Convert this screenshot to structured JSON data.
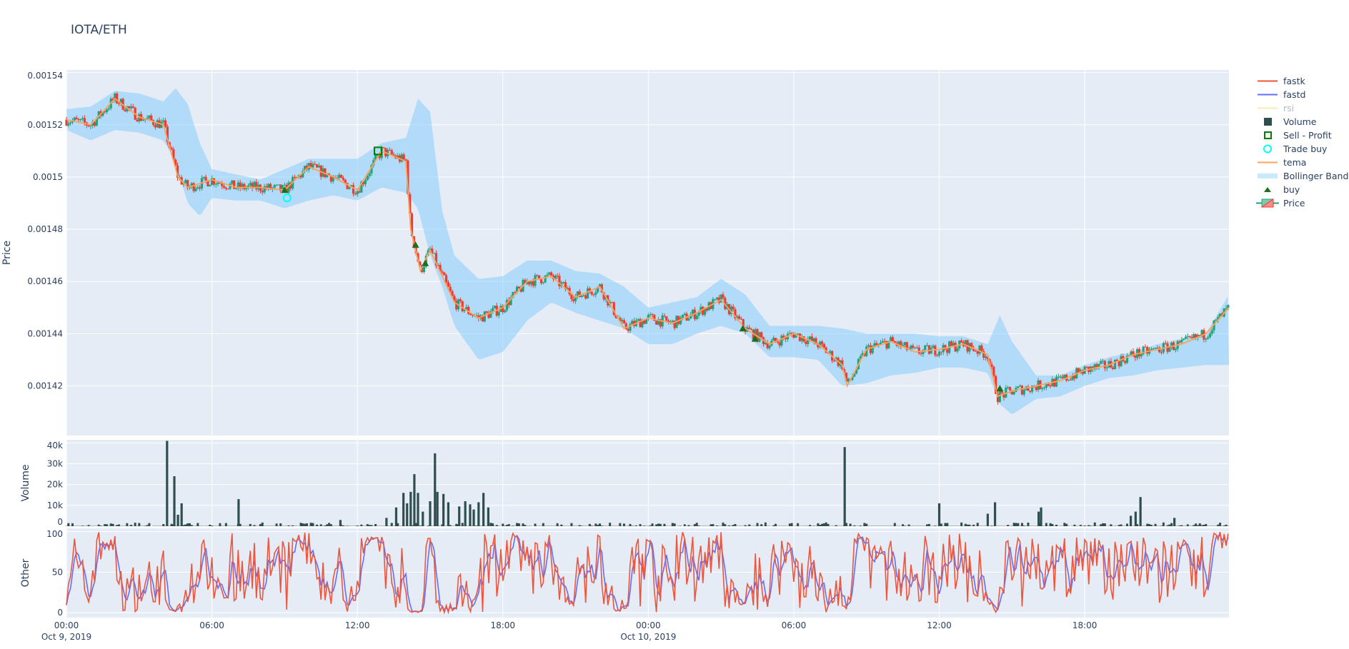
{
  "title": "IOTA/ETH",
  "chart_data": [
    {
      "panel": "price",
      "type": "candlestick",
      "ylabel": "Price",
      "ylim": [
        0.001401,
        0.001541
      ],
      "yticks": [
        0.00142,
        0.00144,
        0.00146,
        0.00148,
        0.0015,
        0.00152,
        0.00154
      ],
      "ytick_labels": [
        "0.00142",
        "0.00144",
        "0.00146",
        "0.00148",
        "0.0015",
        "0.00152",
        "0.00154"
      ],
      "x_hours_from": "Oct 9, 2019 00:00",
      "xlim_hours": [
        0,
        47.95
      ],
      "grid": true,
      "colors": {
        "increasing": "#26a17b",
        "decreasing": "#f23b2e",
        "tema": "#ffa15a",
        "band": "#87cefa",
        "buy": "#1f6e1f",
        "sell_profit": "#008000",
        "trade_buy": "#00ffff"
      },
      "tema": {
        "hours": [
          0,
          1,
          2,
          3,
          4,
          4.6,
          5,
          6,
          7,
          8,
          9,
          10,
          11,
          12,
          13,
          14,
          14.2,
          14.6,
          15,
          16,
          17,
          18,
          19,
          20,
          21,
          22,
          23,
          24,
          25,
          26,
          27,
          28,
          29,
          30,
          31,
          32,
          32.2,
          33,
          34,
          35,
          36,
          37,
          38,
          38.4,
          39,
          40,
          41,
          42,
          43,
          44,
          45,
          46,
          47,
          47.95
        ],
        "values": [
          0.001522,
          0.00152,
          0.00153,
          0.001523,
          0.00152,
          0.0015,
          0.001496,
          0.001499,
          0.001496,
          0.001496,
          0.001495,
          0.001504,
          0.0015,
          0.001495,
          0.00151,
          0.001506,
          0.00148,
          0.001464,
          0.001472,
          0.001452,
          0.001446,
          0.00145,
          0.00146,
          0.001462,
          0.001454,
          0.001458,
          0.001442,
          0.001446,
          0.001444,
          0.001448,
          0.001453,
          0.001442,
          0.001436,
          0.00144,
          0.001436,
          0.001428,
          0.00142,
          0.001434,
          0.001437,
          0.001433,
          0.001434,
          0.001436,
          0.001432,
          0.001416,
          0.001418,
          0.00142,
          0.001422,
          0.001426,
          0.001428,
          0.001432,
          0.001434,
          0.001436,
          0.00144,
          0.00145
        ]
      },
      "bollinger_band": {
        "hours": [
          0,
          1,
          2,
          3,
          4,
          4.5,
          5,
          5.5,
          6,
          7,
          8,
          9,
          10,
          11,
          12,
          13,
          14,
          14.5,
          15,
          15.5,
          16,
          17,
          18,
          19,
          20,
          21,
          22,
          23,
          24,
          25,
          26,
          27,
          28,
          29,
          30,
          31,
          32,
          33,
          34,
          35,
          36,
          37,
          38,
          38.5,
          39,
          40,
          41,
          42,
          43,
          44,
          45,
          46,
          47,
          47.95
        ],
        "upper": [
          0.001526,
          0.001527,
          0.001533,
          0.001532,
          0.001529,
          0.001534,
          0.001528,
          0.001513,
          0.001503,
          0.001501,
          0.001499,
          0.001503,
          0.001507,
          0.001507,
          0.001507,
          0.001513,
          0.001515,
          0.00153,
          0.001525,
          0.001487,
          0.00147,
          0.001461,
          0.001462,
          0.001468,
          0.001468,
          0.001464,
          0.001463,
          0.001458,
          0.00145,
          0.001452,
          0.001454,
          0.001461,
          0.001455,
          0.001443,
          0.001443,
          0.001443,
          0.001442,
          0.00144,
          0.00144,
          0.00144,
          0.001439,
          0.001439,
          0.001436,
          0.001447,
          0.001437,
          0.001424,
          0.001424,
          0.001428,
          0.001431,
          0.001433,
          0.001436,
          0.001438,
          0.00144,
          0.001455
        ],
        "lower": [
          0.001518,
          0.001514,
          0.001518,
          0.001517,
          0.001514,
          0.001506,
          0.00149,
          0.001485,
          0.001492,
          0.001491,
          0.001491,
          0.001488,
          0.001491,
          0.001493,
          0.001491,
          0.001496,
          0.001494,
          0.001488,
          0.00147,
          0.001458,
          0.001443,
          0.00143,
          0.001433,
          0.001445,
          0.001452,
          0.001448,
          0.001445,
          0.001442,
          0.001436,
          0.001436,
          0.00144,
          0.001443,
          0.00144,
          0.001431,
          0.001431,
          0.00143,
          0.00142,
          0.001421,
          0.001424,
          0.001425,
          0.001427,
          0.001427,
          0.001425,
          0.001413,
          0.001409,
          0.001415,
          0.001416,
          0.00142,
          0.001423,
          0.001424,
          0.001426,
          0.001427,
          0.001428,
          0.001428
        ]
      },
      "buy": {
        "hours": [
          9.0,
          14.4,
          14.8,
          27.9,
          28.4,
          38.5
        ],
        "values": [
          0.001495,
          0.001474,
          0.001467,
          0.001442,
          0.001438,
          0.001419
        ]
      },
      "trade_buy": {
        "hours": [
          9.1
        ],
        "values": [
          0.001492
        ]
      },
      "sell_profit": {
        "hours": [
          12.85
        ],
        "values": [
          0.00151
        ]
      }
    },
    {
      "panel": "volume",
      "type": "bar",
      "ylabel": "Volume",
      "ylim": [
        0,
        41500
      ],
      "yticks": [
        0,
        10000,
        20000,
        30000,
        40000
      ],
      "ytick_labels": [
        "0",
        "10k",
        "20k",
        "30k",
        "40k"
      ],
      "color": "#2f4f4f",
      "spikes": {
        "hours": [
          4.15,
          4.45,
          4.75,
          4.6,
          7.1,
          11.3,
          13.9,
          13.2,
          13.6,
          14.05,
          14.2,
          14.35,
          14.5,
          14.7,
          15.0,
          15.2,
          15.3,
          15.55,
          15.75,
          16.2,
          16.45,
          16.65,
          16.8,
          17.0,
          17.2,
          17.4,
          32.1,
          36.0,
          38.0,
          38.3,
          40.1,
          40.2,
          43.9,
          44.1,
          44.3,
          45.7
        ],
        "values": [
          41000,
          24000,
          11000,
          5500,
          13000,
          3000,
          16000,
          4000,
          9000,
          11000,
          16500,
          25000,
          16000,
          7000,
          12000,
          35000,
          16500,
          15500,
          11500,
          9500,
          12000,
          10500,
          8000,
          11500,
          16000,
          9000,
          38000,
          11000,
          6000,
          11500,
          7000,
          9000,
          5000,
          7000,
          14000,
          4000
        ]
      }
    },
    {
      "panel": "other",
      "type": "line",
      "ylabel": "Other",
      "ylim": [
        -6,
        104
      ],
      "yticks": [
        0,
        50,
        100
      ],
      "ytick_labels": [
        "0",
        "50",
        "100"
      ],
      "series": [
        {
          "name": "fastk",
          "color": "#ef553b"
        },
        {
          "name": "fastd",
          "color": "#636efa"
        }
      ]
    }
  ],
  "xaxis": {
    "tick_hours": [
      0,
      6,
      12,
      18,
      24,
      30,
      36,
      42
    ],
    "tick_labels": [
      "00:00",
      "06:00",
      "12:00",
      "18:00",
      "00:00",
      "06:00",
      "12:00",
      "18:00"
    ],
    "date_labels": [
      "Oct 9, 2019",
      "",
      "",
      "",
      "Oct 10, 2019",
      "",
      "",
      ""
    ]
  },
  "legend": {
    "placement": "right",
    "items": [
      {
        "label": "fastk",
        "symbol": "line",
        "color": "#ef553b"
      },
      {
        "label": "fastd",
        "symbol": "line",
        "color": "#636efa"
      },
      {
        "label": "rsi",
        "symbol": "line",
        "color": "#fde9b6",
        "muted": true
      },
      {
        "label": "Volume",
        "symbol": "square",
        "color": "#2f4f4f"
      },
      {
        "label": "Sell - Profit",
        "symbol": "square-open",
        "color": "#008000"
      },
      {
        "label": "Trade buy",
        "symbol": "circle-open",
        "color": "#00ffff"
      },
      {
        "label": "tema",
        "symbol": "line",
        "color": "#ffa15a"
      },
      {
        "label": "Bollinger Band",
        "symbol": "band",
        "color": "#c8eafc"
      },
      {
        "label": "buy",
        "symbol": "triangle",
        "color": "#1f6e1f"
      },
      {
        "label": "Price",
        "symbol": "candle",
        "color": "#26a17b"
      }
    ]
  }
}
